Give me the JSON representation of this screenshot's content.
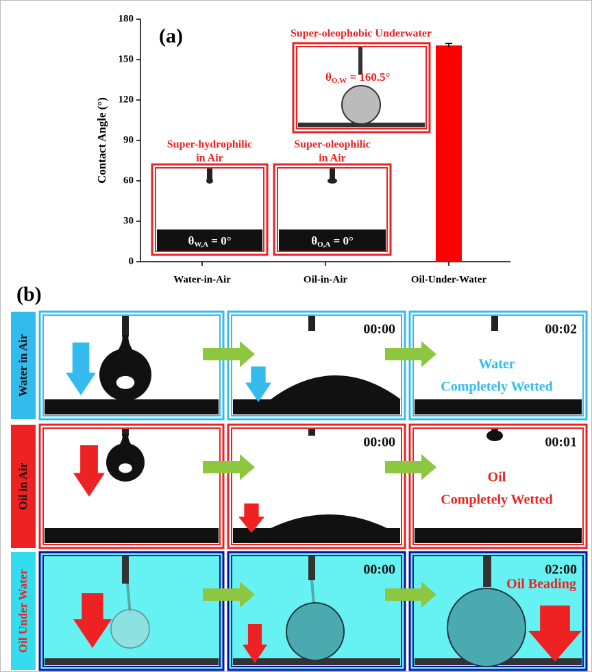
{
  "chart_data": {
    "type": "bar",
    "title": "(a)",
    "y_label": "Contact Angle (°)",
    "categories": [
      "Water-in-Air",
      "Oil-in-Air",
      "Oil-Under-Water"
    ],
    "values": [
      0,
      0,
      160.5
    ],
    "errors": [
      null,
      null,
      1.5
    ],
    "color": "#ff0000",
    "ylim": [
      0,
      180
    ],
    "yticks": [
      0,
      30,
      60,
      90,
      120,
      150,
      180
    ],
    "annotations": [
      {
        "title": [
          "Super-hydrophilic",
          "in Air"
        ],
        "symbol": "θ",
        "sub": "W,A",
        "tail": " = 0°"
      },
      {
        "title": [
          "Super-oleophilic",
          "in Air"
        ],
        "symbol": "θ",
        "sub": "O,A",
        "tail": " = 0°"
      },
      {
        "title": [
          "Super-oleophobic Underwater"
        ],
        "symbol": "θ",
        "sub": "O,W",
        "tail": " = 160.5°"
      }
    ]
  },
  "panel_b": {
    "label": "(b)",
    "rows": [
      {
        "label": "Water in Air",
        "times": [
          "00:00",
          "00:02"
        ],
        "result": [
          "Water",
          "Completely Wetted"
        ]
      },
      {
        "label": "Oil in Air",
        "times": [
          "00:00",
          "00:01"
        ],
        "result": [
          "Oil",
          "Completely Wetted"
        ]
      },
      {
        "label": "Oil Under Water",
        "times": [
          "00:00",
          "02:00"
        ],
        "result": [
          "Oil Beading"
        ]
      }
    ]
  }
}
